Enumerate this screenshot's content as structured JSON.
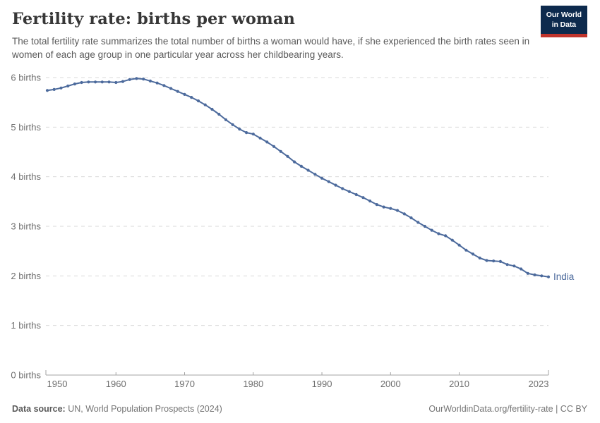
{
  "header": {
    "title": "Fertility rate: births per woman",
    "subtitle": "The total fertility rate summarizes the total number of births a woman would have, if she experienced the birth rates seen in women of each age group in one particular year across her childbearing years.",
    "logo_line1": "Our World",
    "logo_line2": "in Data"
  },
  "footer": {
    "datasource_label": "Data source:",
    "datasource_value": " UN, World Population Prospects (2024)",
    "credit": "OurWorldinData.org/fertility-rate | CC BY"
  },
  "colors": {
    "series_blue": "#4C6A9C",
    "gridline": "#dadada",
    "axis": "#a3a3a3",
    "tick_label": "#6e6e6e",
    "logo_bg": "#0d2a4d",
    "logo_red": "#c0342c"
  },
  "chart_data": {
    "type": "line",
    "title": "Fertility rate: births per woman",
    "xlabel": "",
    "ylabel": "",
    "xlim": [
      1950,
      2023
    ],
    "ylim": [
      0,
      6
    ],
    "grid": "horizontal-dashed",
    "legend_position": "end-of-line-label",
    "x_ticks": [
      1950,
      1960,
      1970,
      1980,
      1990,
      2000,
      2010,
      2023
    ],
    "y_ticks": [
      0,
      1,
      2,
      3,
      4,
      5,
      6
    ],
    "y_tick_suffix": " births",
    "series": [
      {
        "name": "India",
        "color": "#4C6A9C",
        "x": [
          1950,
          1951,
          1952,
          1953,
          1954,
          1955,
          1956,
          1957,
          1958,
          1959,
          1960,
          1961,
          1962,
          1963,
          1964,
          1965,
          1966,
          1967,
          1968,
          1969,
          1970,
          1971,
          1972,
          1973,
          1974,
          1975,
          1976,
          1977,
          1978,
          1979,
          1980,
          1981,
          1982,
          1983,
          1984,
          1985,
          1986,
          1987,
          1988,
          1989,
          1990,
          1991,
          1992,
          1993,
          1994,
          1995,
          1996,
          1997,
          1998,
          1999,
          2000,
          2001,
          2002,
          2003,
          2004,
          2005,
          2006,
          2007,
          2008,
          2009,
          2010,
          2011,
          2012,
          2013,
          2014,
          2015,
          2016,
          2017,
          2018,
          2019,
          2020,
          2021,
          2022,
          2023
        ],
        "values": [
          5.74,
          5.76,
          5.79,
          5.83,
          5.87,
          5.9,
          5.91,
          5.91,
          5.91,
          5.91,
          5.9,
          5.92,
          5.96,
          5.98,
          5.97,
          5.93,
          5.89,
          5.84,
          5.78,
          5.72,
          5.66,
          5.6,
          5.53,
          5.45,
          5.36,
          5.26,
          5.15,
          5.05,
          4.96,
          4.89,
          4.86,
          4.78,
          4.7,
          4.61,
          4.51,
          4.41,
          4.3,
          4.21,
          4.13,
          4.05,
          3.97,
          3.9,
          3.83,
          3.76,
          3.7,
          3.64,
          3.58,
          3.51,
          3.44,
          3.39,
          3.36,
          3.32,
          3.25,
          3.17,
          3.08,
          3.0,
          2.92,
          2.85,
          2.81,
          2.72,
          2.62,
          2.52,
          2.44,
          2.36,
          2.31,
          2.3,
          2.29,
          2.23,
          2.2,
          2.14,
          2.05,
          2.02,
          2.0,
          1.98
        ]
      }
    ]
  }
}
